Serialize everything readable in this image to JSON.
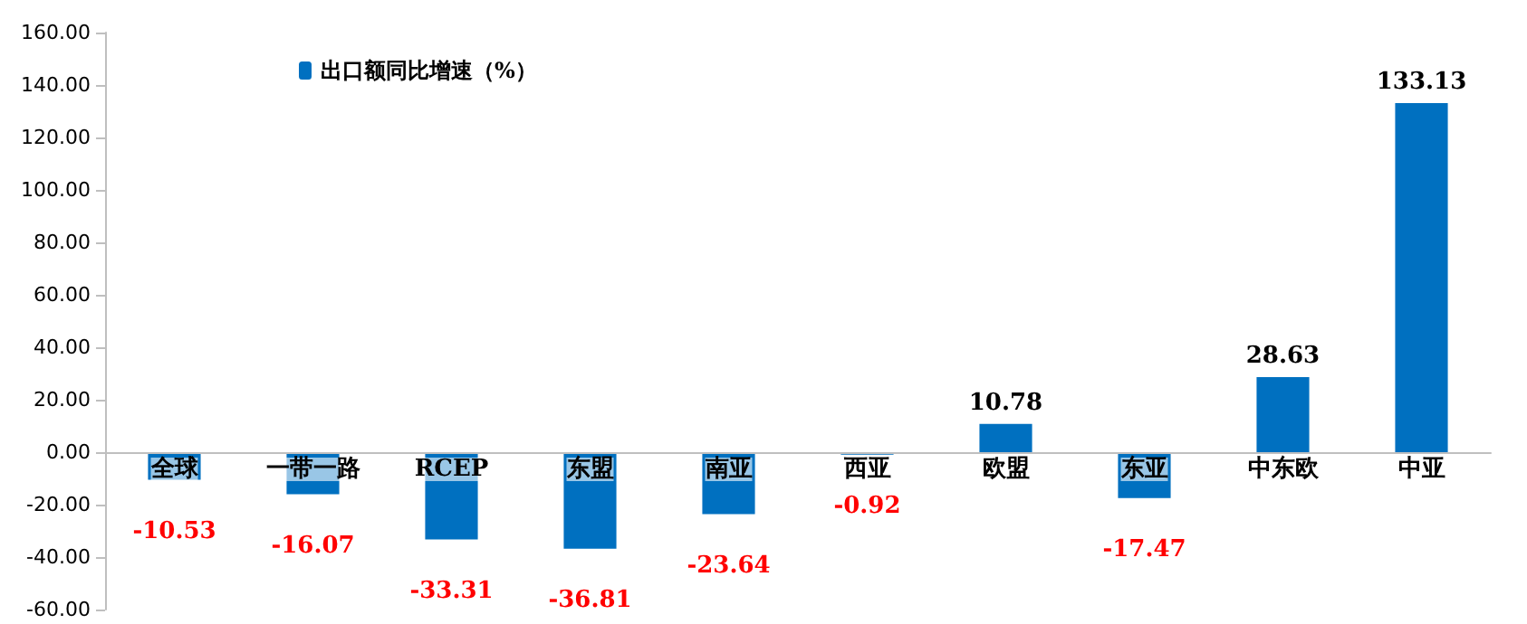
{
  "chart_data": {
    "type": "bar",
    "categories": [
      "全球",
      "一带一路",
      "RCEP",
      "东盟",
      "南亚",
      "西亚",
      "欧盟",
      "东亚",
      "中东欧",
      "中亚"
    ],
    "series": [
      {
        "name": "出口额同比增速（%）",
        "color": "#0070c0",
        "values": [
          -10.53,
          -16.07,
          -33.31,
          -36.81,
          -23.64,
          -0.92,
          10.78,
          -17.47,
          28.63,
          133.13
        ]
      }
    ],
    "data_labels": true,
    "ylim": [
      -60,
      160
    ],
    "yticks": [
      {
        "value": -60,
        "label": "-60.00"
      },
      {
        "value": -40,
        "label": "-40.00"
      },
      {
        "value": -20,
        "label": "-20.00"
      },
      {
        "value": 0,
        "label": "0.00"
      },
      {
        "value": 20,
        "label": "20.00"
      },
      {
        "value": 40,
        "label": "40.00"
      },
      {
        "value": 60,
        "label": "60.00"
      },
      {
        "value": 80,
        "label": "80.00"
      },
      {
        "value": 100,
        "label": "100.00"
      },
      {
        "value": 120,
        "label": "120.00"
      },
      {
        "value": 140,
        "label": "140.00"
      },
      {
        "value": 160,
        "label": "160.00"
      }
    ],
    "grid": false,
    "legend": "top left"
  }
}
